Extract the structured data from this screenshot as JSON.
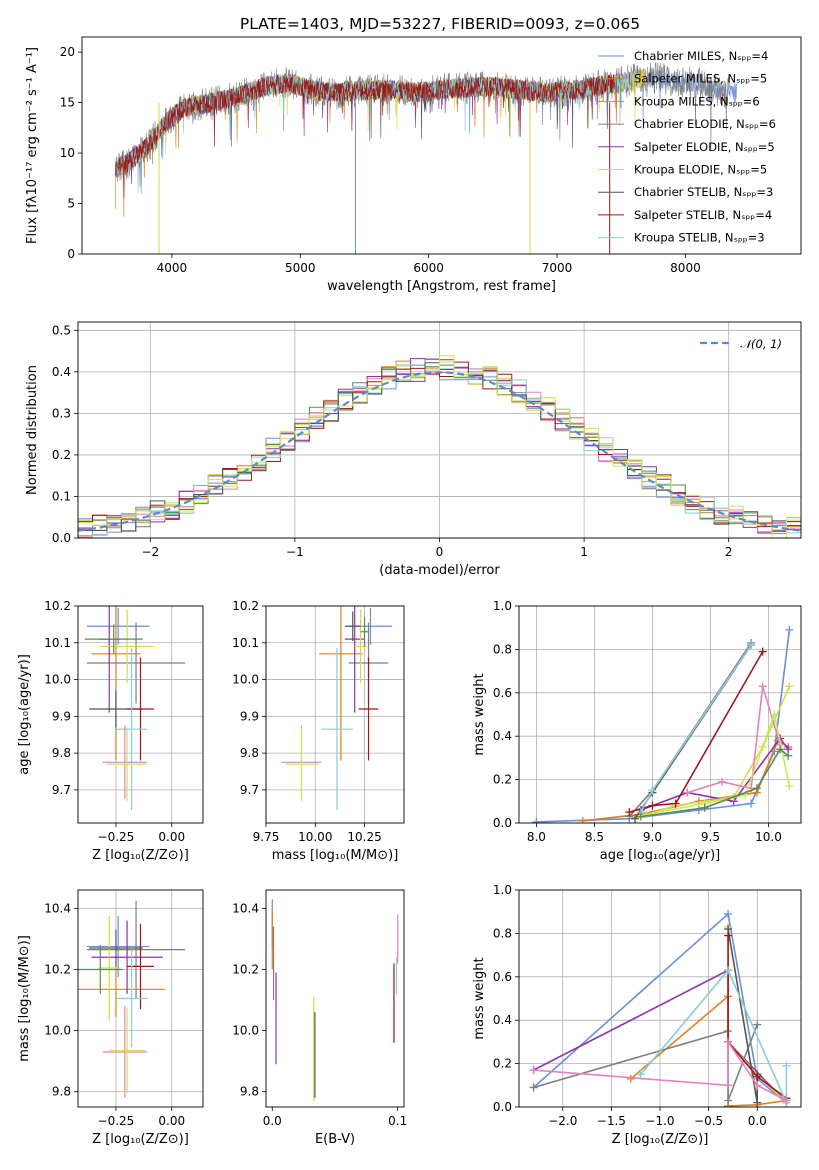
{
  "figure_title": "PLATE=1403, MJD=53227, FIBERID=0093, z=0.065",
  "colors": [
    "#6a8fdc",
    "#e07f1c",
    "#7f7f7f",
    "#8f2fb0",
    "#d8d84a",
    "#555555",
    "#a01616",
    "#88cdd8",
    "#e97fbd",
    "#c8e85a",
    "#5a8a5a"
  ],
  "chart_data": [
    {
      "type": "line",
      "panel": "spectrum",
      "title": "PLATE=1403, MJD=53227, FIBERID=0093, z=0.065",
      "xlabel": "wavelength [Angstrom, rest frame]",
      "ylabel": "Flux [fλ10⁻¹⁷ erg cm⁻² s⁻¹ A⁻¹]",
      "xlim": [
        3300,
        8900
      ],
      "ylim": [
        0,
        21.5
      ],
      "xticks": [
        "4000",
        "5000",
        "6000",
        "7000",
        "8000"
      ],
      "yticks": [
        "0",
        "5",
        "10",
        "15",
        "20"
      ],
      "legend_position": "right",
      "legend": [
        "Chabrier MILES, Nₛₚₚ=4",
        "Salpeter MILES, Nₛₚₚ=5",
        "Kroupa MILES, Nₛₚₚ=6",
        "Chabrier ELODIE, Nₛₚₚ=6",
        "Salpeter ELODIE, Nₛₚₚ=5",
        "Kroupa ELODIE, Nₛₚₚ=5",
        "Chabrier STELIB, Nₛₚₚ=3",
        "Salpeter STELIB, Nₛₚₚ=4",
        "Kroupa STELIB, Nₛₚₚ=3"
      ],
      "spectrum_trend": {
        "x": [
          3550,
          3650,
          3800,
          3950,
          4100,
          4300,
          4500,
          4700,
          4900,
          5100,
          5300,
          5500,
          5700,
          5900,
          6100,
          6300,
          6500,
          6700,
          6900,
          7100,
          7300,
          7500,
          7700,
          7900,
          8100,
          8300
        ],
        "y": [
          8.5,
          9.0,
          10.5,
          13.0,
          14.5,
          15.0,
          15.5,
          16.5,
          17.0,
          16.2,
          16.0,
          16.2,
          16.3,
          16.0,
          16.3,
          16.5,
          16.6,
          16.3,
          16.0,
          16.2,
          16.6,
          17.0,
          17.5,
          17.2,
          17.0,
          16.0
        ]
      }
    },
    {
      "type": "bar",
      "panel": "residual-histogram",
      "xlabel": "(data-model)/error",
      "ylabel": "Normed distribution",
      "xlim": [
        -2.5,
        2.5
      ],
      "ylim": [
        0,
        0.52
      ],
      "xticks": [
        "−2",
        "−1",
        "0",
        "1",
        "2"
      ],
      "yticks": [
        "0.0",
        "0.1",
        "0.2",
        "0.3",
        "0.4",
        "0.5"
      ],
      "grid": true,
      "legend_position": "top-right",
      "legend": [
        "𝒩(0, 1)"
      ],
      "bin_width": 0.1
    },
    {
      "type": "scatter",
      "panel": "age-vs-Z",
      "xlabel": "Z [log₁₀(Z/Z⊙)]",
      "ylabel": "age  [log₁₀(age/yr)]",
      "xlim": [
        -0.42,
        0.14
      ],
      "ylim": [
        9.61,
        10.2
      ],
      "xticks": [
        "−0.25",
        "0.00"
      ],
      "yticks": [
        "9.7",
        "9.8",
        "9.9",
        "10.0",
        "10.1",
        "10.2"
      ],
      "grid": true,
      "series": [
        {
          "x": -0.24,
          "y": 10.145,
          "xerr": 0.14,
          "yerr": 0.05
        },
        {
          "x": -0.25,
          "y": 10.07,
          "xerr": 0.11,
          "yerr": 0.29
        },
        {
          "x": -0.16,
          "y": 10.045,
          "xerr": 0.22,
          "yerr": 0.11
        },
        {
          "x": -0.28,
          "y": 10.11,
          "xerr": 0.05,
          "yerr": 0.2
        },
        {
          "x": -0.2,
          "y": 10.09,
          "xerr": 0.12,
          "yerr": 0.1
        },
        {
          "x": -0.25,
          "y": 9.92,
          "xerr": 0.12,
          "yerr": 0.05
        },
        {
          "x": -0.14,
          "y": 9.92,
          "xerr": 0.06,
          "yerr": 0.14
        },
        {
          "x": -0.18,
          "y": 9.865,
          "xerr": 0.07,
          "yerr": 0.22
        },
        {
          "x": -0.21,
          "y": 9.775,
          "xerr": 0.1,
          "yerr": 0.1
        },
        {
          "x": -0.2,
          "y": 9.77,
          "xerr": 0.09,
          "yerr": 0.1
        },
        {
          "x": -0.26,
          "y": 10.11,
          "xerr": 0.13,
          "yerr": 0.04
        }
      ]
    },
    {
      "type": "scatter",
      "panel": "age-vs-mass",
      "xlabel": "mass [log₁₀(M/M⊙)]",
      "xlim": [
        9.75,
        10.45
      ],
      "ylim": [
        9.61,
        10.2
      ],
      "xticks": [
        "9.75",
        "10.00",
        "10.25"
      ],
      "yticks": [
        "9.7",
        "9.8",
        "9.9",
        "10.0",
        "10.1",
        "10.2"
      ],
      "grid": true,
      "series": [
        {
          "x": 10.28,
          "y": 10.145,
          "xerr": 0.11,
          "yerr": 0.05
        },
        {
          "x": 10.13,
          "y": 10.07,
          "xerr": 0.11,
          "yerr": 0.29
        },
        {
          "x": 10.27,
          "y": 10.045,
          "xerr": 0.1,
          "yerr": 0.11
        },
        {
          "x": 10.2,
          "y": 10.11,
          "xerr": 0.05,
          "yerr": 0.2
        },
        {
          "x": 10.23,
          "y": 10.09,
          "xerr": 0.03,
          "yerr": 0.1
        },
        {
          "x": 10.19,
          "y": 10.145,
          "xerr": 0.04,
          "yerr": 0.04
        },
        {
          "x": 10.27,
          "y": 9.92,
          "xerr": 0.05,
          "yerr": 0.14
        },
        {
          "x": 10.11,
          "y": 9.865,
          "xerr": 0.08,
          "yerr": 0.22
        },
        {
          "x": 9.93,
          "y": 9.775,
          "xerr": 0.1,
          "yerr": 0.1
        },
        {
          "x": 9.93,
          "y": 9.77,
          "xerr": 0.08,
          "yerr": 0.1
        },
        {
          "x": 10.25,
          "y": 10.13,
          "xerr": 0.02,
          "yerr": 0.04
        }
      ]
    },
    {
      "type": "line",
      "panel": "mass-weight-vs-age",
      "xlabel": "age  [log₁₀(age/yr)]",
      "ylabel": "mass weight",
      "xlim": [
        7.85,
        10.28
      ],
      "ylim": [
        0,
        1.0
      ],
      "xticks": [
        "8.0",
        "8.5",
        "9.0",
        "9.5",
        "10.0"
      ],
      "yticks": [
        "0.0",
        "0.2",
        "0.4",
        "0.6",
        "0.8",
        "1.0"
      ],
      "grid": true,
      "series": [
        {
          "x": [
            8.0,
            8.8,
            9.4,
            9.85,
            10.05,
            10.18
          ],
          "y": [
            0.005,
            0.02,
            0.06,
            0.09,
            0.33,
            0.89
          ]
        },
        {
          "x": [
            8.4,
            8.9,
            9.4,
            9.9,
            10.08,
            10.17
          ],
          "y": [
            0.01,
            0.04,
            0.1,
            0.14,
            0.38,
            0.35
          ]
        },
        {
          "x": [
            8.8,
            9.0,
            9.85
          ],
          "y": [
            0.03,
            0.15,
            0.83
          ]
        },
        {
          "x": [
            8.9,
            9.3,
            9.7,
            10.1,
            10.17
          ],
          "y": [
            0.06,
            0.14,
            0.1,
            0.39,
            0.34
          ]
        },
        {
          "x": [
            8.85,
            9.2,
            9.7,
            9.95,
            10.18
          ],
          "y": [
            0.02,
            0.08,
            0.12,
            0.35,
            0.63
          ]
        },
        {
          "x": [
            8.85,
            9.0,
            9.85
          ],
          "y": [
            0.02,
            0.14,
            0.82
          ]
        },
        {
          "x": [
            8.8,
            9.0,
            9.2,
            9.95
          ],
          "y": [
            0.05,
            0.08,
            0.09,
            0.79
          ]
        },
        {
          "x": [
            8.9,
            9.0,
            9.85
          ],
          "y": [
            0.05,
            0.15,
            0.82
          ]
        },
        {
          "x": [
            9.3,
            9.6,
            9.85,
            9.95,
            10.1
          ],
          "y": [
            0.14,
            0.19,
            0.16,
            0.63,
            0.36
          ]
        },
        {
          "x": [
            8.95,
            9.45,
            9.8,
            10.05,
            10.18
          ],
          "y": [
            0.04,
            0.09,
            0.13,
            0.5,
            0.17
          ]
        },
        {
          "x": [
            8.9,
            9.45,
            9.9,
            10.1,
            10.17
          ],
          "y": [
            0.03,
            0.07,
            0.16,
            0.34,
            0.31
          ]
        }
      ]
    },
    {
      "type": "scatter",
      "panel": "mass-vs-Z",
      "xlabel": "Z [log₁₀(Z/Z⊙)]",
      "ylabel": "mass [log₁₀(M/M⊙)]",
      "xlim": [
        -0.42,
        0.14
      ],
      "ylim": [
        9.75,
        10.46
      ],
      "xticks": [
        "−0.25",
        "0.00"
      ],
      "yticks": [
        "9.8",
        "10.0",
        "10.2",
        "10.4"
      ],
      "grid": true,
      "series": [
        {
          "x": -0.24,
          "y": 10.275,
          "xerr": 0.14,
          "yerr": 0.1
        },
        {
          "x": -0.25,
          "y": 10.135,
          "xerr": 0.22,
          "yerr": 0.09
        },
        {
          "x": -0.16,
          "y": 10.265,
          "xerr": 0.22,
          "yerr": 0.16
        },
        {
          "x": -0.2,
          "y": 10.24,
          "xerr": 0.16,
          "yerr": 0.12
        },
        {
          "x": -0.28,
          "y": 10.205,
          "xerr": 0.05,
          "yerr": 0.17
        },
        {
          "x": -0.25,
          "y": 10.27,
          "xerr": 0.12,
          "yerr": 0.06
        },
        {
          "x": -0.14,
          "y": 10.21,
          "xerr": 0.06,
          "yerr": 0.14
        },
        {
          "x": -0.18,
          "y": 10.105,
          "xerr": 0.07,
          "yerr": 0.16
        },
        {
          "x": -0.21,
          "y": 9.93,
          "xerr": 0.1,
          "yerr": 0.15
        },
        {
          "x": -0.2,
          "y": 9.935,
          "xerr": 0.08,
          "yerr": 0.14
        },
        {
          "x": -0.32,
          "y": 10.2,
          "xerr": 0.1,
          "yerr": 0.08
        }
      ]
    },
    {
      "type": "scatter",
      "panel": "mass-vs-EBV",
      "xlabel": "E(B-V)",
      "xlim": [
        -0.005,
        0.105
      ],
      "ylim": [
        9.75,
        10.46
      ],
      "xticks": [
        "0.0",
        "0.1"
      ],
      "yticks": [
        "9.8",
        "10.0",
        "10.2",
        "10.4"
      ],
      "grid": false,
      "series": [
        {
          "x": 0.0,
          "y": 10.35,
          "yerr": 0.08
        },
        {
          "x": 0.0,
          "y": 10.3,
          "yerr": 0.1
        },
        {
          "x": 0.001,
          "y": 10.22,
          "yerr": 0.12
        },
        {
          "x": 0.003,
          "y": 10.04,
          "yerr": 0.15
        },
        {
          "x": 0.033,
          "y": 9.94,
          "yerr": 0.17
        },
        {
          "x": 0.034,
          "y": 9.92,
          "yerr": 0.14
        },
        {
          "x": 0.097,
          "y": 10.09,
          "yerr": 0.13
        },
        {
          "x": 0.099,
          "y": 10.18,
          "yerr": 0.06
        },
        {
          "x": 0.1,
          "y": 10.3,
          "yerr": 0.08
        }
      ]
    },
    {
      "type": "line",
      "panel": "mass-weight-vs-Z",
      "xlabel": "Z [log₁₀(Z/Z⊙)]",
      "ylabel": "mass weight",
      "xlim": [
        -2.45,
        0.45
      ],
      "ylim": [
        0,
        1.0
      ],
      "xticks": [
        "−2.0",
        "−1.5",
        "−1.0",
        "−0.5",
        "0.0"
      ],
      "yticks": [
        "0.0",
        "0.2",
        "0.4",
        "0.6",
        "0.8",
        "1.0"
      ],
      "grid": true,
      "series": [
        {
          "x": [
            -2.3,
            -0.3,
            0.0,
            0.3
          ],
          "y": [
            0.09,
            0.89,
            0.13,
            0.02
          ]
        },
        {
          "x": [
            -1.3,
            -0.3,
            -0.3,
            0.0,
            0.3
          ],
          "y": [
            0.13,
            0.51,
            0.005,
            0.01,
            0.03
          ]
        },
        {
          "x": [
            -2.3,
            -0.3,
            -0.3,
            0.0
          ],
          "y": [
            0.09,
            0.35,
            0.03,
            0.38
          ]
        },
        {
          "x": [
            -2.3,
            -0.3,
            -0.3,
            0.3
          ],
          "y": [
            0.17,
            0.63,
            0.3,
            0.02
          ]
        },
        {
          "x": [
            -0.3,
            -0.3,
            0.0,
            0.3
          ],
          "y": [
            0.83,
            0.3,
            0.15,
            0.02
          ]
        },
        {
          "x": [
            -0.3,
            0.0,
            0.0
          ],
          "y": [
            0.82,
            0.02,
            0.15
          ]
        },
        {
          "x": [
            -0.3,
            -0.3,
            0.0,
            0.3
          ],
          "y": [
            0.79,
            0.3,
            0.14,
            0.04
          ]
        },
        {
          "x": [
            -1.2,
            -0.3,
            0.3,
            0.3
          ],
          "y": [
            0.15,
            0.63,
            0.02,
            0.19
          ]
        },
        {
          "x": [
            -2.3,
            -0.3,
            -0.3,
            0.0,
            0.3
          ],
          "y": [
            0.17,
            0.1,
            0.3,
            0.1,
            0.03
          ]
        }
      ]
    }
  ]
}
